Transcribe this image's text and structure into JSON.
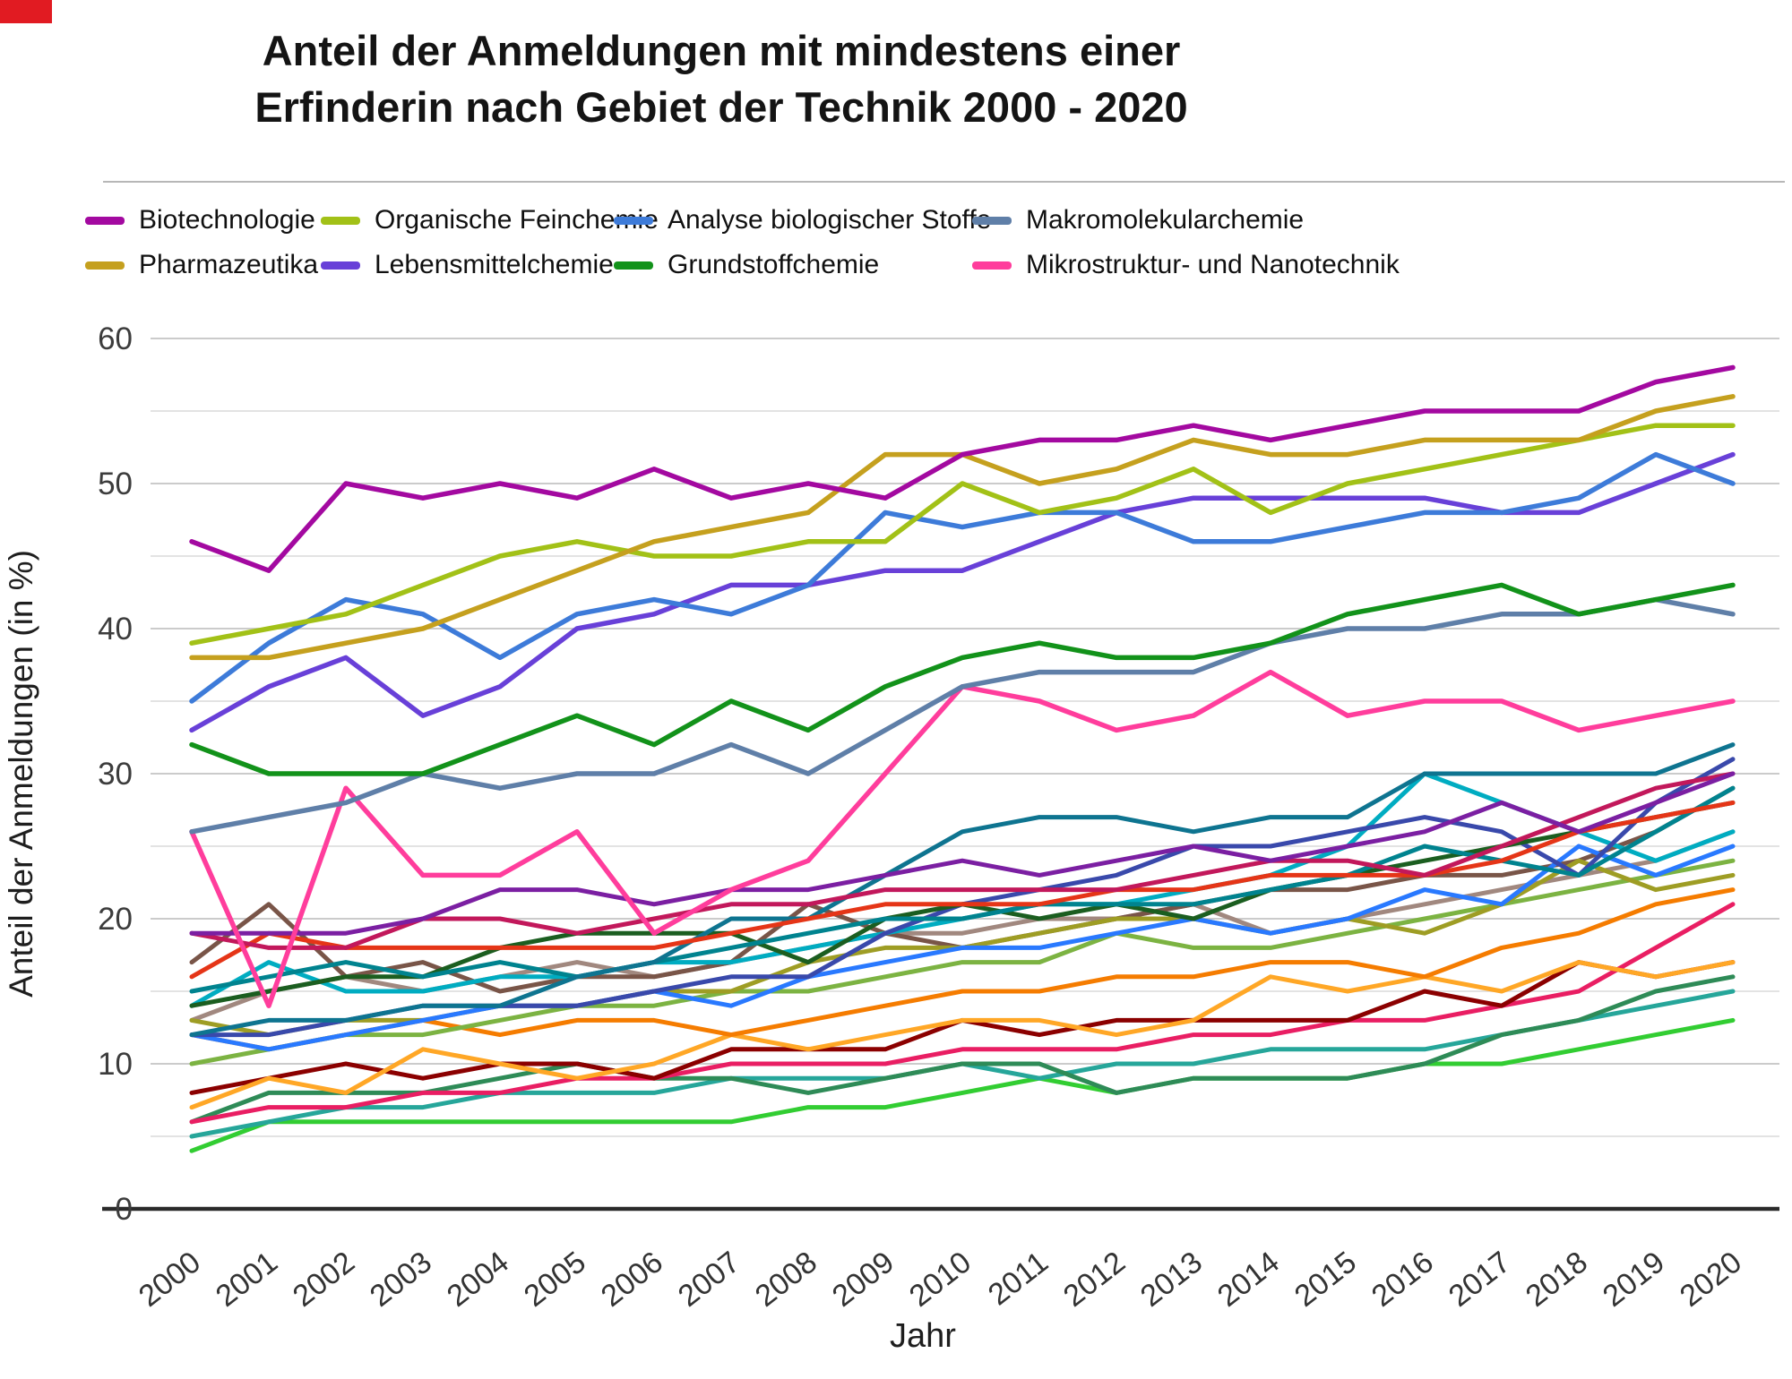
{
  "page": {
    "corner_mark_color": "#e11b22"
  },
  "title": {
    "line1": "Anteil der Anmeldungen mit mindestens einer",
    "line2": "Erfinderin nach Gebiet der Technik 2000 - 2020"
  },
  "legend": {
    "items": [
      {
        "label": "Biotechnologie",
        "color": "#a309a0",
        "row": 1,
        "col": 1
      },
      {
        "label": "Organische Feinchemie",
        "color": "#a2c117",
        "row": 1,
        "col": 2
      },
      {
        "label": "Analyse biologischer Stoffe",
        "color": "#3d7bd9",
        "row": 1,
        "col": 3
      },
      {
        "label": "Makromolekularchemie",
        "color": "#5f7fa8",
        "row": 1,
        "col": 4
      },
      {
        "label": "Pharmazeutika",
        "color": "#c5a01e",
        "row": 2,
        "col": 1
      },
      {
        "label": "Lebensmittelchemie",
        "color": "#6840d8",
        "row": 2,
        "col": 2
      },
      {
        "label": "Grundstoffchemie",
        "color": "#12921a",
        "row": 2,
        "col": 3
      },
      {
        "label": "Mikrostruktur- und Nanotechnik",
        "color": "#ff3d9c",
        "row": 2,
        "col": 4
      }
    ]
  },
  "chart_data": {
    "type": "line",
    "title": "Anteil der Anmeldungen mit mindestens einer Erfinderin nach Gebiet der Technik 2000 - 2020",
    "xlabel": "Jahr",
    "ylabel": "Anteil der Anmeldungen (in %)",
    "x": [
      2000,
      2001,
      2002,
      2003,
      2004,
      2005,
      2006,
      2007,
      2008,
      2009,
      2010,
      2011,
      2012,
      2013,
      2014,
      2015,
      2016,
      2017,
      2018,
      2019,
      2020
    ],
    "xticks": [
      "2000",
      "2001",
      "2002",
      "2003",
      "2004",
      "2005",
      "2006",
      "2007",
      "2008",
      "2009",
      "2010",
      "2011",
      "2012",
      "2013",
      "2014",
      "2015",
      "2016",
      "2017",
      "2018",
      "2019",
      "2020"
    ],
    "yticks": [
      0,
      10,
      20,
      30,
      40,
      50,
      60
    ],
    "ylim": [
      0,
      60
    ],
    "grid": true,
    "gridline_step": 5,
    "legend_position": "top",
    "series": [
      {
        "name": "",
        "color": "#32CD32",
        "in_legend": false,
        "values": [
          4,
          6,
          6,
          6,
          6,
          6,
          6,
          6,
          7,
          7,
          8,
          9,
          8,
          9,
          9,
          9,
          10,
          10,
          11,
          12,
          13
        ]
      },
      {
        "name": "",
        "color": "#26A69A",
        "in_legend": false,
        "values": [
          5,
          6,
          7,
          7,
          8,
          8,
          8,
          9,
          9,
          9,
          10,
          9,
          10,
          10,
          11,
          11,
          11,
          12,
          13,
          14,
          15
        ]
      },
      {
        "name": "",
        "color": "#2E8B57",
        "in_legend": false,
        "values": [
          6,
          8,
          8,
          8,
          9,
          10,
          9,
          9,
          8,
          9,
          10,
          10,
          8,
          9,
          9,
          9,
          10,
          12,
          13,
          15,
          16
        ]
      },
      {
        "name": "",
        "color": "#E91E63",
        "in_legend": false,
        "values": [
          6,
          7,
          7,
          8,
          8,
          9,
          9,
          10,
          10,
          10,
          11,
          11,
          11,
          12,
          12,
          13,
          13,
          14,
          15,
          18,
          21
        ]
      },
      {
        "name": "",
        "color": "#8B0000",
        "in_legend": false,
        "values": [
          8,
          9,
          10,
          9,
          10,
          10,
          9,
          11,
          11,
          11,
          13,
          12,
          13,
          13,
          13,
          13,
          15,
          14,
          17,
          16,
          17
        ]
      },
      {
        "name": "",
        "color": "#FFA726",
        "in_legend": false,
        "values": [
          7,
          9,
          8,
          11,
          10,
          9,
          10,
          12,
          11,
          12,
          13,
          13,
          12,
          13,
          16,
          15,
          16,
          15,
          17,
          16,
          17
        ]
      },
      {
        "name": "",
        "color": "#F57C00",
        "in_legend": false,
        "values": [
          12,
          11,
          12,
          13,
          12,
          13,
          13,
          12,
          13,
          14,
          15,
          15,
          16,
          16,
          17,
          17,
          16,
          18,
          19,
          21,
          22
        ]
      },
      {
        "name": "",
        "color": "#A1887F",
        "in_legend": false,
        "values": [
          13,
          15,
          16,
          15,
          16,
          17,
          16,
          17,
          18,
          19,
          19,
          20,
          20,
          21,
          19,
          20,
          21,
          22,
          23,
          24,
          26
        ]
      },
      {
        "name": "",
        "color": "#795548",
        "in_legend": false,
        "values": [
          17,
          21,
          16,
          17,
          15,
          16,
          16,
          17,
          21,
          19,
          18,
          19,
          20,
          21,
          22,
          22,
          23,
          23,
          24,
          26,
          29
        ]
      },
      {
        "name": "",
        "color": "#7CB342",
        "in_legend": false,
        "values": [
          10,
          11,
          12,
          12,
          13,
          14,
          14,
          15,
          15,
          16,
          17,
          17,
          19,
          18,
          18,
          19,
          20,
          21,
          22,
          23,
          24
        ]
      },
      {
        "name": "",
        "color": "#9E9D24",
        "in_legend": false,
        "values": [
          13,
          12,
          13,
          13,
          14,
          14,
          15,
          15,
          17,
          18,
          18,
          19,
          20,
          20,
          19,
          20,
          19,
          21,
          24,
          22,
          23
        ]
      },
      {
        "name": "",
        "color": "#00ACC1",
        "in_legend": false,
        "values": [
          14,
          17,
          15,
          15,
          16,
          16,
          17,
          17,
          18,
          19,
          20,
          21,
          21,
          22,
          23,
          25,
          30,
          28,
          26,
          24,
          26
        ]
      },
      {
        "name": "",
        "color": "#2979FF",
        "in_legend": false,
        "values": [
          12,
          11,
          12,
          13,
          14,
          14,
          15,
          14,
          16,
          17,
          18,
          18,
          19,
          20,
          19,
          20,
          22,
          21,
          25,
          23,
          25
        ]
      },
      {
        "name": "",
        "color": "#3949AB",
        "in_legend": false,
        "values": [
          12,
          12,
          13,
          14,
          14,
          14,
          15,
          16,
          16,
          19,
          21,
          22,
          23,
          25,
          25,
          26,
          27,
          26,
          23,
          28,
          31
        ]
      },
      {
        "name": "",
        "color": "#1B5E20",
        "in_legend": false,
        "values": [
          14,
          15,
          16,
          16,
          18,
          19,
          19,
          19,
          17,
          20,
          21,
          20,
          21,
          20,
          22,
          23,
          24,
          25,
          26,
          27,
          28
        ]
      },
      {
        "name": "",
        "color": "#00838F",
        "in_legend": false,
        "values": [
          15,
          16,
          17,
          16,
          17,
          16,
          17,
          18,
          19,
          20,
          20,
          21,
          21,
          21,
          22,
          23,
          25,
          24,
          23,
          26,
          29
        ]
      },
      {
        "name": "",
        "color": "#0E7490",
        "in_legend": false,
        "values": [
          12,
          13,
          13,
          14,
          14,
          16,
          17,
          20,
          20,
          23,
          26,
          27,
          27,
          26,
          27,
          27,
          30,
          30,
          30,
          30,
          32
        ]
      },
      {
        "name": "",
        "color": "#E53517",
        "in_legend": false,
        "values": [
          16,
          19,
          18,
          18,
          18,
          18,
          18,
          19,
          20,
          21,
          21,
          21,
          22,
          22,
          23,
          23,
          23,
          24,
          26,
          27,
          28
        ]
      },
      {
        "name": "",
        "color": "#C2185B",
        "in_legend": false,
        "values": [
          19,
          18,
          18,
          20,
          20,
          19,
          20,
          21,
          21,
          22,
          22,
          22,
          22,
          23,
          24,
          24,
          23,
          25,
          27,
          29,
          30
        ]
      },
      {
        "name": "",
        "color": "#7B1FA2",
        "in_legend": false,
        "values": [
          19,
          19,
          19,
          20,
          22,
          22,
          21,
          22,
          22,
          23,
          24,
          23,
          24,
          25,
          24,
          25,
          26,
          28,
          26,
          28,
          30
        ]
      },
      {
        "name": "Mikrostruktur- und Nanotechnik",
        "color": "#ff3d9c",
        "in_legend": true,
        "values": [
          26,
          14,
          29,
          23,
          23,
          26,
          19,
          22,
          24,
          30,
          36,
          35,
          33,
          34,
          37,
          34,
          35,
          35,
          33,
          34,
          35
        ]
      },
      {
        "name": "Makromolekularchemie",
        "color": "#5f7fa8",
        "in_legend": true,
        "values": [
          26,
          27,
          28,
          30,
          29,
          30,
          30,
          32,
          30,
          33,
          36,
          37,
          37,
          37,
          39,
          40,
          40,
          41,
          41,
          42,
          41
        ]
      },
      {
        "name": "Grundstoffchemie",
        "color": "#12921a",
        "in_legend": true,
        "values": [
          32,
          30,
          30,
          30,
          32,
          34,
          32,
          35,
          33,
          36,
          38,
          39,
          38,
          38,
          39,
          41,
          42,
          43,
          41,
          42,
          43
        ]
      },
      {
        "name": "Lebensmittelchemie",
        "color": "#6840d8",
        "in_legend": true,
        "values": [
          33,
          36,
          38,
          34,
          36,
          40,
          41,
          43,
          43,
          44,
          44,
          46,
          48,
          49,
          49,
          49,
          49,
          48,
          48,
          50,
          52
        ]
      },
      {
        "name": "Analyse biologischer Stoffe",
        "color": "#3d7bd9",
        "in_legend": true,
        "values": [
          35,
          39,
          42,
          41,
          38,
          41,
          42,
          41,
          43,
          48,
          47,
          48,
          48,
          46,
          46,
          47,
          48,
          48,
          49,
          52,
          50
        ]
      },
      {
        "name": "Organische Feinchemie",
        "color": "#a2c117",
        "in_legend": true,
        "values": [
          39,
          40,
          41,
          43,
          45,
          46,
          45,
          45,
          46,
          46,
          50,
          48,
          49,
          51,
          48,
          50,
          51,
          52,
          53,
          54,
          54
        ]
      },
      {
        "name": "Pharmazeutika",
        "color": "#c5a01e",
        "in_legend": true,
        "values": [
          38,
          38,
          39,
          40,
          42,
          44,
          46,
          47,
          48,
          52,
          52,
          50,
          51,
          53,
          52,
          52,
          53,
          53,
          53,
          55,
          56
        ]
      },
      {
        "name": "Biotechnologie",
        "color": "#a309a0",
        "in_legend": true,
        "values": [
          46,
          44,
          50,
          49,
          50,
          49,
          51,
          49,
          50,
          49,
          52,
          53,
          53,
          54,
          53,
          54,
          55,
          55,
          55,
          57,
          58
        ]
      }
    ]
  }
}
